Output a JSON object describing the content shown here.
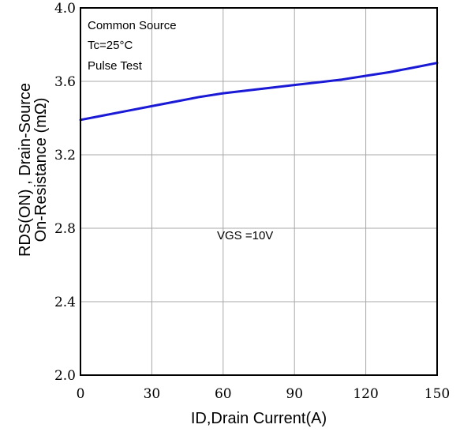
{
  "chart_data": {
    "type": "line",
    "xlabel": "ID,Drain Current(A)",
    "ylabel_lines": [
      "RDS(ON) , Drain-Source",
      "On-Resistance (mΩ)"
    ],
    "xlim": [
      0,
      150
    ],
    "ylim": [
      2.0,
      4.0
    ],
    "x_ticks": [
      0,
      30,
      60,
      90,
      120,
      150
    ],
    "y_ticks": [
      2.0,
      2.4,
      2.8,
      3.2,
      3.6,
      4.0
    ],
    "y_tick_labels": [
      "2.0",
      "2.4",
      "2.8",
      "3.2",
      "3.6",
      "4.0"
    ],
    "grid": true,
    "annotations": {
      "conditions": [
        "Common Source",
        "Tc=25°C",
        "Pulse Test"
      ],
      "curve_label": "VGS =10V"
    },
    "series": [
      {
        "color": "#1a1ad6",
        "x": [
          0,
          10,
          20,
          30,
          40,
          50,
          60,
          70,
          80,
          90,
          100,
          110,
          120,
          130,
          140,
          150
        ],
        "y": [
          3.39,
          3.415,
          3.44,
          3.465,
          3.49,
          3.515,
          3.535,
          3.55,
          3.565,
          3.58,
          3.595,
          3.61,
          3.63,
          3.65,
          3.675,
          3.7
        ]
      }
    ]
  }
}
